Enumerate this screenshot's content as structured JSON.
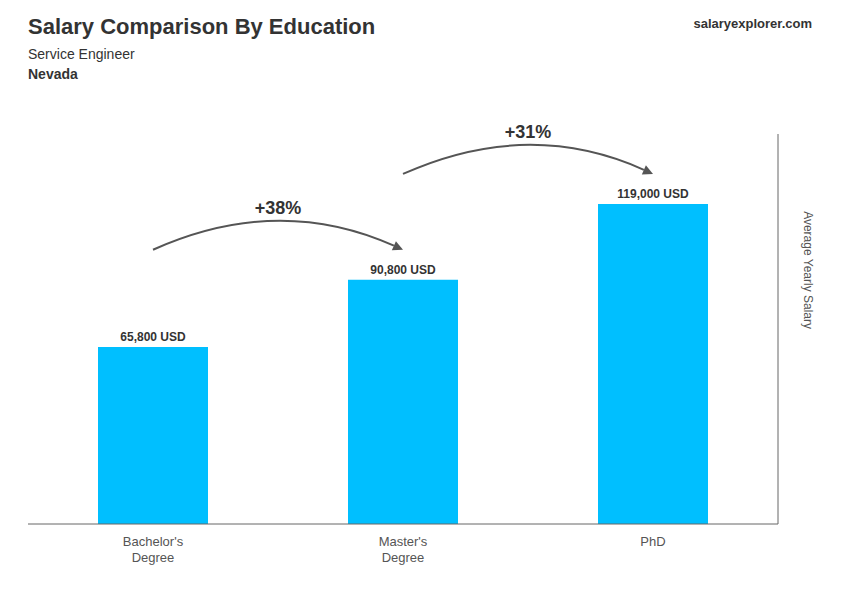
{
  "chart_data": {
    "type": "bar",
    "title": "Salary Comparison By Education",
    "subtitle": "Service Engineer",
    "location": "Nevada",
    "watermark": "salaryexplorer.com",
    "ylabel": "Average Yearly Salary",
    "categories": [
      "Bachelor's\nDegree",
      "Master's\nDegree",
      "PhD"
    ],
    "values": [
      65800,
      90800,
      119000
    ],
    "value_labels": [
      "65,800 USD",
      "90,800 USD",
      "119,000 USD"
    ],
    "data_labels": true,
    "color": "#00BFFF",
    "annotations": [
      "+38%",
      "+31%"
    ],
    "ylim": [
      0,
      145000
    ],
    "tick_labels": "x",
    "grid": false
  }
}
